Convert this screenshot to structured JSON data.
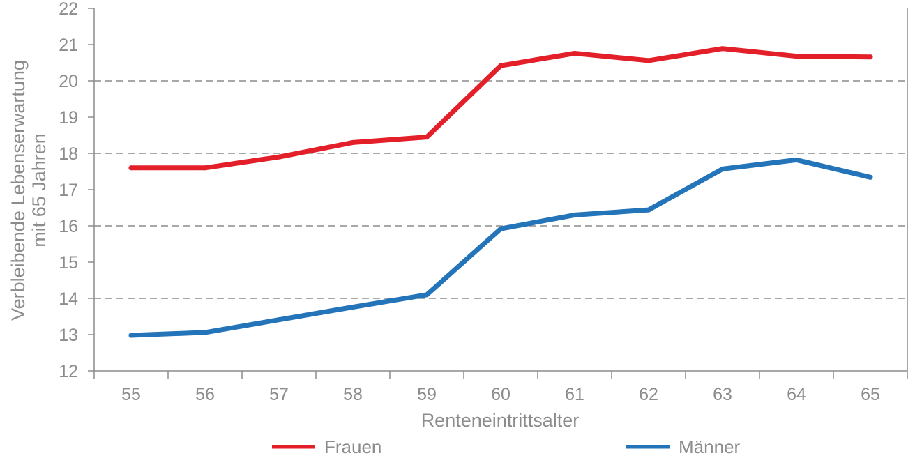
{
  "chart_data": {
    "type": "line",
    "categories": [
      "55",
      "56",
      "57",
      "58",
      "59",
      "60",
      "61",
      "62",
      "63",
      "64",
      "65"
    ],
    "series": [
      {
        "name": "Frauen",
        "color": "#e3202a",
        "values": [
          17.6,
          17.6,
          17.9,
          18.3,
          18.45,
          20.42,
          20.76,
          20.56,
          20.89,
          20.68,
          20.66
        ]
      },
      {
        "name": "Männer",
        "color": "#2374b9",
        "values": [
          12.98,
          13.06,
          13.41,
          13.76,
          14.1,
          15.92,
          16.3,
          16.44,
          17.57,
          17.82,
          17.34
        ]
      }
    ],
    "xlabel": "Renteneintrittsalter",
    "ylabel_line1": "Verbleibende Lebenserwartung",
    "ylabel_line2": "mit 65 Jahren",
    "ylim": [
      12,
      22
    ],
    "yticks": [
      "12",
      "13",
      "14",
      "15",
      "16",
      "17",
      "18",
      "19",
      "20",
      "21",
      "22"
    ],
    "grid": "dashed horizontal lines at 14, 16, 18, 20",
    "legend_position": "bottom"
  }
}
